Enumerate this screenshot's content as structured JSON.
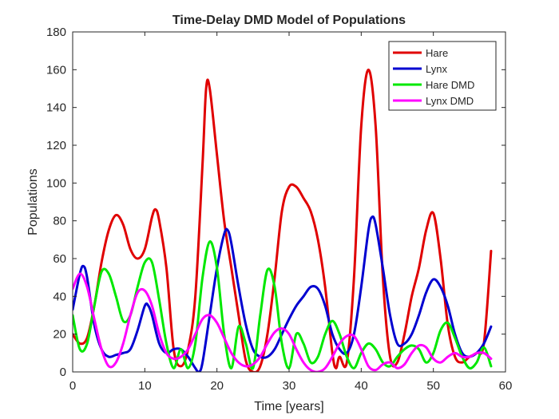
{
  "chart_data": {
    "type": "line",
    "title": "Time-Delay DMD Model of Populations",
    "xlabel": "Time [years]",
    "ylabel": "Populations",
    "xlim": [
      0,
      60
    ],
    "ylim": [
      0,
      180
    ],
    "x_ticks": [
      "0",
      "10",
      "20",
      "30",
      "40",
      "50",
      "60"
    ],
    "y_ticks": [
      "0",
      "20",
      "40",
      "60",
      "80",
      "100",
      "120",
      "140",
      "160",
      "180"
    ],
    "grid": false,
    "legend_position": "top-right",
    "series": [
      {
        "name": "Hare",
        "color": "#e00000",
        "points": [
          [
            0,
            20
          ],
          [
            1,
            15
          ],
          [
            2,
            18
          ],
          [
            3,
            35
          ],
          [
            4,
            58
          ],
          [
            5,
            75
          ],
          [
            6,
            83
          ],
          [
            7,
            78
          ],
          [
            8,
            65
          ],
          [
            9,
            60
          ],
          [
            10,
            65
          ],
          [
            11,
            82
          ],
          [
            11.5,
            86
          ],
          [
            12,
            80
          ],
          [
            13,
            55
          ],
          [
            14,
            12
          ],
          [
            15,
            3
          ],
          [
            16,
            12
          ],
          [
            17,
            40
          ],
          [
            18,
            110
          ],
          [
            18.5,
            150
          ],
          [
            19,
            150
          ],
          [
            20,
            115
          ],
          [
            21,
            80
          ],
          [
            22,
            55
          ],
          [
            23,
            30
          ],
          [
            24,
            6
          ],
          [
            25,
            0
          ],
          [
            26,
            3
          ],
          [
            27,
            20
          ],
          [
            28,
            50
          ],
          [
            29,
            85
          ],
          [
            30,
            98
          ],
          [
            31,
            98
          ],
          [
            32,
            92
          ],
          [
            33,
            85
          ],
          [
            34,
            70
          ],
          [
            35,
            45
          ],
          [
            36,
            10
          ],
          [
            36.5,
            2
          ],
          [
            37,
            8
          ],
          [
            38,
            5
          ],
          [
            39,
            50
          ],
          [
            40,
            130
          ],
          [
            41,
            160
          ],
          [
            42,
            130
          ],
          [
            43,
            50
          ],
          [
            44,
            8
          ],
          [
            45,
            5
          ],
          [
            46,
            20
          ],
          [
            47,
            40
          ],
          [
            48,
            55
          ],
          [
            49,
            75
          ],
          [
            50,
            84
          ],
          [
            51,
            60
          ],
          [
            52,
            25
          ],
          [
            53,
            8
          ],
          [
            54,
            5
          ],
          [
            55,
            8
          ],
          [
            56,
            10
          ],
          [
            57,
            15
          ],
          [
            58,
            64
          ]
        ]
      },
      {
        "name": "Lynx",
        "color": "#0000d0",
        "points": [
          [
            0,
            33
          ],
          [
            1,
            52
          ],
          [
            1.5,
            56
          ],
          [
            2,
            50
          ],
          [
            3,
            25
          ],
          [
            4,
            12
          ],
          [
            5,
            8
          ],
          [
            6,
            9
          ],
          [
            7,
            10
          ],
          [
            8,
            12
          ],
          [
            9,
            22
          ],
          [
            10,
            35
          ],
          [
            10.5,
            35
          ],
          [
            11,
            30
          ],
          [
            12,
            15
          ],
          [
            13,
            10
          ],
          [
            14,
            12
          ],
          [
            15,
            12
          ],
          [
            16,
            8
          ],
          [
            17,
            2
          ],
          [
            17.5,
            0
          ],
          [
            18,
            5
          ],
          [
            19,
            30
          ],
          [
            20,
            55
          ],
          [
            21,
            73
          ],
          [
            21.5,
            75
          ],
          [
            22,
            68
          ],
          [
            23,
            45
          ],
          [
            24,
            25
          ],
          [
            25,
            12
          ],
          [
            26,
            8
          ],
          [
            27,
            8
          ],
          [
            28,
            12
          ],
          [
            29,
            20
          ],
          [
            30,
            28
          ],
          [
            31,
            35
          ],
          [
            32,
            40
          ],
          [
            33,
            45
          ],
          [
            34,
            44
          ],
          [
            35,
            35
          ],
          [
            36,
            20
          ],
          [
            37,
            12
          ],
          [
            38,
            10
          ],
          [
            39,
            20
          ],
          [
            40,
            45
          ],
          [
            41,
            75
          ],
          [
            41.5,
            82
          ],
          [
            42,
            78
          ],
          [
            43,
            55
          ],
          [
            44,
            30
          ],
          [
            45,
            15
          ],
          [
            46,
            15
          ],
          [
            47,
            20
          ],
          [
            48,
            30
          ],
          [
            49,
            42
          ],
          [
            50,
            49
          ],
          [
            51,
            45
          ],
          [
            52,
            35
          ],
          [
            53,
            20
          ],
          [
            54,
            10
          ],
          [
            55,
            8
          ],
          [
            56,
            10
          ],
          [
            57,
            15
          ],
          [
            58,
            24
          ]
        ]
      },
      {
        "name": "Hare DMD",
        "color": "#00e800",
        "points": [
          [
            0,
            30
          ],
          [
            1,
            12
          ],
          [
            2,
            15
          ],
          [
            3,
            35
          ],
          [
            4,
            53
          ],
          [
            5,
            52
          ],
          [
            6,
            40
          ],
          [
            7,
            27
          ],
          [
            8,
            30
          ],
          [
            9,
            45
          ],
          [
            10,
            58
          ],
          [
            11,
            58
          ],
          [
            12,
            38
          ],
          [
            13,
            15
          ],
          [
            14,
            2
          ],
          [
            15,
            12
          ],
          [
            16,
            2
          ],
          [
            17,
            15
          ],
          [
            18,
            50
          ],
          [
            19,
            69
          ],
          [
            20,
            55
          ],
          [
            21,
            20
          ],
          [
            22,
            2
          ],
          [
            23,
            24
          ],
          [
            24,
            15
          ],
          [
            25,
            2
          ],
          [
            26,
            30
          ],
          [
            27,
            54
          ],
          [
            28,
            45
          ],
          [
            29,
            15
          ],
          [
            30,
            2
          ],
          [
            31,
            20
          ],
          [
            32,
            15
          ],
          [
            33,
            5
          ],
          [
            34,
            8
          ],
          [
            35,
            20
          ],
          [
            36,
            27
          ],
          [
            37,
            20
          ],
          [
            38,
            8
          ],
          [
            39,
            2
          ],
          [
            40,
            10
          ],
          [
            41,
            15
          ],
          [
            42,
            12
          ],
          [
            43,
            5
          ],
          [
            44,
            3
          ],
          [
            45,
            8
          ],
          [
            46,
            12
          ],
          [
            47,
            14
          ],
          [
            48,
            12
          ],
          [
            49,
            5
          ],
          [
            50,
            10
          ],
          [
            51,
            22
          ],
          [
            52,
            26
          ],
          [
            53,
            18
          ],
          [
            54,
            8
          ],
          [
            55,
            2
          ],
          [
            56,
            5
          ],
          [
            57,
            13
          ],
          [
            58,
            3
          ]
        ]
      },
      {
        "name": "Lynx DMD",
        "color": "#ff00ff",
        "points": [
          [
            0,
            44
          ],
          [
            1,
            52
          ],
          [
            2,
            45
          ],
          [
            3,
            28
          ],
          [
            4,
            12
          ],
          [
            5,
            3
          ],
          [
            6,
            5
          ],
          [
            7,
            15
          ],
          [
            8,
            30
          ],
          [
            9,
            42
          ],
          [
            10,
            43
          ],
          [
            11,
            35
          ],
          [
            12,
            20
          ],
          [
            13,
            10
          ],
          [
            14,
            7
          ],
          [
            15,
            8
          ],
          [
            16,
            12
          ],
          [
            17,
            20
          ],
          [
            18,
            28
          ],
          [
            19,
            30
          ],
          [
            20,
            26
          ],
          [
            21,
            18
          ],
          [
            22,
            10
          ],
          [
            23,
            5
          ],
          [
            24,
            3
          ],
          [
            25,
            4
          ],
          [
            26,
            8
          ],
          [
            27,
            15
          ],
          [
            28,
            21
          ],
          [
            29,
            23
          ],
          [
            30,
            20
          ],
          [
            31,
            12
          ],
          [
            32,
            5
          ],
          [
            33,
            1
          ],
          [
            34,
            0
          ],
          [
            35,
            2
          ],
          [
            36,
            8
          ],
          [
            37,
            15
          ],
          [
            38,
            19
          ],
          [
            39,
            19
          ],
          [
            40,
            12
          ],
          [
            41,
            3
          ],
          [
            42,
            1
          ],
          [
            43,
            4
          ],
          [
            44,
            5
          ],
          [
            45,
            2
          ],
          [
            46,
            4
          ],
          [
            47,
            10
          ],
          [
            48,
            14
          ],
          [
            49,
            13
          ],
          [
            50,
            7
          ],
          [
            51,
            5
          ],
          [
            52,
            8
          ],
          [
            53,
            10
          ],
          [
            54,
            8
          ],
          [
            55,
            8
          ],
          [
            56,
            10
          ],
          [
            57,
            10
          ],
          [
            58,
            7
          ]
        ]
      }
    ]
  }
}
